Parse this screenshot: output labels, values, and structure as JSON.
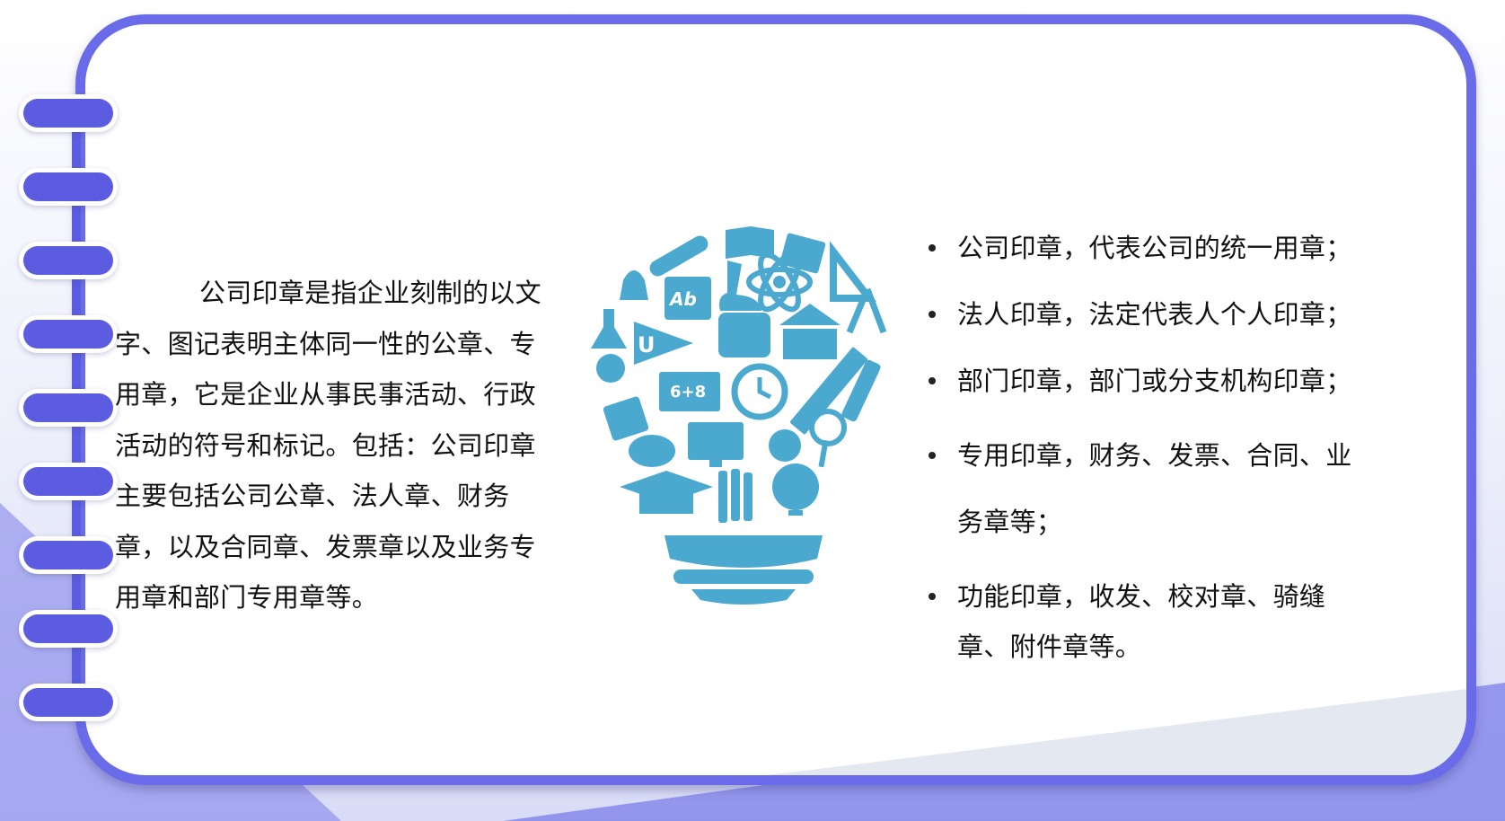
{
  "intro_paragraph": "公司印章是指企业刻制的以文字、图记表明主体同一性的公章、专用章，它是企业从事民事活动、行政活动的符号和标记。包括：公司印章主要包括公司公章、法人章、财务章，以及合同章、发票章以及业务专用章和部门专用章等。",
  "bulb_graphic": {
    "icon": "lightbulb-education-icons",
    "color": "#4ba8cf",
    "labels": {
      "pennant_letter": "U",
      "book_letters": "Ab",
      "board_equation": "6+8"
    }
  },
  "seal_types": [
    "公司印章，代表公司的统一用章；",
    "法人印章，法定代表人个人印章；",
    "部门印章，部门或分支机构印章；",
    "专用印章，财务、发票、合同、业务章等；",
    "功能印章，收发、校对章、骑缝章、附件章等。"
  ],
  "colors": {
    "frame": "#6a6be8",
    "tabs": "#5b5ce0",
    "icons": "#4ba8cf"
  }
}
